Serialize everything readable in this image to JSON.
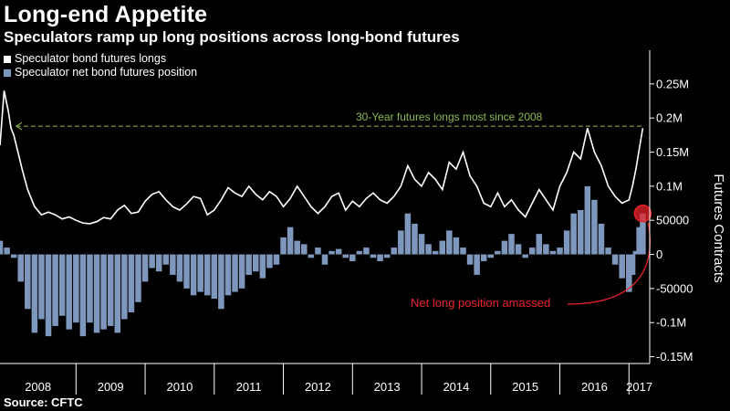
{
  "header": {
    "title": "Long-end Appetite",
    "subtitle": "Speculators ramp up long positions across long-bond futures",
    "source": "Source: CFTC"
  },
  "colors": {
    "longs_line": "#ffffff",
    "net_bars": "#7d97bd",
    "reference_line": "#8fb84b",
    "highlight": "#e8232a"
  },
  "chart_data": {
    "type": "bar",
    "ylabel": "Futures Contracts",
    "ylim": [
      -160000,
      290000
    ],
    "yticks": [
      {
        "value": 250000,
        "label": "0.25M"
      },
      {
        "value": 200000,
        "label": "0.2M"
      },
      {
        "value": 150000,
        "label": "0.15M"
      },
      {
        "value": 100000,
        "label": "0.1M"
      },
      {
        "value": 50000,
        "label": "50000"
      },
      {
        "value": 0,
        "label": "0"
      },
      {
        "value": -50000,
        "label": "-50000"
      },
      {
        "value": -100000,
        "label": "-0.1M"
      },
      {
        "value": -150000,
        "label": "-0.15M"
      }
    ],
    "x_range": [
      2007.9,
      2017.3
    ],
    "years": [
      {
        "label": "2008",
        "start": 2007.9,
        "end": 2009.0
      },
      {
        "label": "2009",
        "start": 2009.0,
        "end": 2010.0
      },
      {
        "label": "2010",
        "start": 2010.0,
        "end": 2011.0
      },
      {
        "label": "2011",
        "start": 2011.0,
        "end": 2012.0
      },
      {
        "label": "2012",
        "start": 2012.0,
        "end": 2013.0
      },
      {
        "label": "2013",
        "start": 2013.0,
        "end": 2014.0
      },
      {
        "label": "2014",
        "start": 2014.0,
        "end": 2015.0
      },
      {
        "label": "2015",
        "start": 2015.0,
        "end": 2016.0
      },
      {
        "label": "2016",
        "start": 2016.0,
        "end": 2017.0
      },
      {
        "label": "2017",
        "start": 2017.0,
        "end": 2017.3
      }
    ],
    "series": [
      {
        "name": "Speculator bond futures longs",
        "kind": "line",
        "points": [
          [
            2007.9,
            160000
          ],
          [
            2007.96,
            240000
          ],
          [
            2008.02,
            210000
          ],
          [
            2008.06,
            185000
          ],
          [
            2008.1,
            175000
          ],
          [
            2008.16,
            150000
          ],
          [
            2008.22,
            125000
          ],
          [
            2008.3,
            95000
          ],
          [
            2008.4,
            70000
          ],
          [
            2008.5,
            58000
          ],
          [
            2008.6,
            62000
          ],
          [
            2008.7,
            58000
          ],
          [
            2008.8,
            52000
          ],
          [
            2008.9,
            55000
          ],
          [
            2009.0,
            50000
          ],
          [
            2009.1,
            46000
          ],
          [
            2009.2,
            45000
          ],
          [
            2009.3,
            48000
          ],
          [
            2009.4,
            54000
          ],
          [
            2009.5,
            52000
          ],
          [
            2009.6,
            65000
          ],
          [
            2009.7,
            72000
          ],
          [
            2009.8,
            60000
          ],
          [
            2009.9,
            62000
          ],
          [
            2010.0,
            78000
          ],
          [
            2010.1,
            88000
          ],
          [
            2010.2,
            92000
          ],
          [
            2010.3,
            80000
          ],
          [
            2010.4,
            70000
          ],
          [
            2010.5,
            65000
          ],
          [
            2010.6,
            74000
          ],
          [
            2010.7,
            85000
          ],
          [
            2010.8,
            82000
          ],
          [
            2010.9,
            58000
          ],
          [
            2011.0,
            65000
          ],
          [
            2011.1,
            80000
          ],
          [
            2011.2,
            98000
          ],
          [
            2011.3,
            90000
          ],
          [
            2011.4,
            85000
          ],
          [
            2011.5,
            100000
          ],
          [
            2011.6,
            88000
          ],
          [
            2011.7,
            80000
          ],
          [
            2011.8,
            92000
          ],
          [
            2011.9,
            85000
          ],
          [
            2012.0,
            70000
          ],
          [
            2012.1,
            82000
          ],
          [
            2012.2,
            100000
          ],
          [
            2012.3,
            85000
          ],
          [
            2012.4,
            70000
          ],
          [
            2012.5,
            60000
          ],
          [
            2012.6,
            70000
          ],
          [
            2012.7,
            85000
          ],
          [
            2012.8,
            90000
          ],
          [
            2012.9,
            65000
          ],
          [
            2013.0,
            78000
          ],
          [
            2013.1,
            70000
          ],
          [
            2013.2,
            82000
          ],
          [
            2013.3,
            90000
          ],
          [
            2013.4,
            80000
          ],
          [
            2013.5,
            75000
          ],
          [
            2013.6,
            85000
          ],
          [
            2013.7,
            100000
          ],
          [
            2013.8,
            130000
          ],
          [
            2013.9,
            110000
          ],
          [
            2014.0,
            100000
          ],
          [
            2014.1,
            120000
          ],
          [
            2014.2,
            110000
          ],
          [
            2014.3,
            95000
          ],
          [
            2014.4,
            135000
          ],
          [
            2014.5,
            125000
          ],
          [
            2014.6,
            150000
          ],
          [
            2014.7,
            115000
          ],
          [
            2014.8,
            100000
          ],
          [
            2014.9,
            75000
          ],
          [
            2015.0,
            70000
          ],
          [
            2015.1,
            90000
          ],
          [
            2015.2,
            70000
          ],
          [
            2015.3,
            80000
          ],
          [
            2015.4,
            65000
          ],
          [
            2015.5,
            55000
          ],
          [
            2015.6,
            75000
          ],
          [
            2015.7,
            95000
          ],
          [
            2015.8,
            80000
          ],
          [
            2015.9,
            65000
          ],
          [
            2016.0,
            100000
          ],
          [
            2016.1,
            120000
          ],
          [
            2016.2,
            150000
          ],
          [
            2016.3,
            140000
          ],
          [
            2016.4,
            185000
          ],
          [
            2016.5,
            150000
          ],
          [
            2016.6,
            130000
          ],
          [
            2016.7,
            100000
          ],
          [
            2016.8,
            85000
          ],
          [
            2016.9,
            75000
          ],
          [
            2017.0,
            80000
          ],
          [
            2017.05,
            100000
          ],
          [
            2017.1,
            125000
          ],
          [
            2017.15,
            155000
          ],
          [
            2017.2,
            185000
          ]
        ]
      },
      {
        "name": "Speculator net bond futures position",
        "kind": "bar",
        "points": [
          [
            2007.9,
            20000
          ],
          [
            2008.0,
            10000
          ],
          [
            2008.1,
            -5000
          ],
          [
            2008.2,
            -40000
          ],
          [
            2008.3,
            -80000
          ],
          [
            2008.4,
            -115000
          ],
          [
            2008.5,
            -95000
          ],
          [
            2008.6,
            -120000
          ],
          [
            2008.7,
            -105000
          ],
          [
            2008.8,
            -90000
          ],
          [
            2008.9,
            -110000
          ],
          [
            2009.0,
            -100000
          ],
          [
            2009.1,
            -120000
          ],
          [
            2009.2,
            -100000
          ],
          [
            2009.3,
            -115000
          ],
          [
            2009.4,
            -110000
          ],
          [
            2009.5,
            -105000
          ],
          [
            2009.6,
            -115000
          ],
          [
            2009.7,
            -95000
          ],
          [
            2009.8,
            -85000
          ],
          [
            2009.9,
            -70000
          ],
          [
            2010.0,
            -40000
          ],
          [
            2010.1,
            -20000
          ],
          [
            2010.2,
            -25000
          ],
          [
            2010.3,
            -15000
          ],
          [
            2010.4,
            -30000
          ],
          [
            2010.5,
            -40000
          ],
          [
            2010.6,
            -50000
          ],
          [
            2010.7,
            -60000
          ],
          [
            2010.8,
            -55000
          ],
          [
            2010.9,
            -60000
          ],
          [
            2011.0,
            -65000
          ],
          [
            2011.1,
            -80000
          ],
          [
            2011.2,
            -60000
          ],
          [
            2011.3,
            -55000
          ],
          [
            2011.4,
            -50000
          ],
          [
            2011.5,
            -30000
          ],
          [
            2011.6,
            -25000
          ],
          [
            2011.7,
            -35000
          ],
          [
            2011.8,
            -20000
          ],
          [
            2011.9,
            -15000
          ],
          [
            2012.0,
            25000
          ],
          [
            2012.1,
            40000
          ],
          [
            2012.2,
            20000
          ],
          [
            2012.3,
            15000
          ],
          [
            2012.4,
            -5000
          ],
          [
            2012.5,
            10000
          ],
          [
            2012.6,
            -15000
          ],
          [
            2012.7,
            5000
          ],
          [
            2012.8,
            8000
          ],
          [
            2012.9,
            -5000
          ],
          [
            2013.0,
            -10000
          ],
          [
            2013.1,
            5000
          ],
          [
            2013.2,
            10000
          ],
          [
            2013.3,
            -5000
          ],
          [
            2013.4,
            -10000
          ],
          [
            2013.5,
            -5000
          ],
          [
            2013.6,
            10000
          ],
          [
            2013.7,
            35000
          ],
          [
            2013.8,
            60000
          ],
          [
            2013.9,
            45000
          ],
          [
            2014.0,
            30000
          ],
          [
            2014.1,
            15000
          ],
          [
            2014.2,
            5000
          ],
          [
            2014.3,
            20000
          ],
          [
            2014.4,
            35000
          ],
          [
            2014.5,
            25000
          ],
          [
            2014.6,
            10000
          ],
          [
            2014.7,
            -15000
          ],
          [
            2014.8,
            -30000
          ],
          [
            2014.9,
            -10000
          ],
          [
            2015.0,
            -5000
          ],
          [
            2015.1,
            5000
          ],
          [
            2015.2,
            20000
          ],
          [
            2015.3,
            30000
          ],
          [
            2015.4,
            15000
          ],
          [
            2015.5,
            -5000
          ],
          [
            2015.6,
            10000
          ],
          [
            2015.7,
            30000
          ],
          [
            2015.8,
            15000
          ],
          [
            2015.9,
            5000
          ],
          [
            2016.0,
            10000
          ],
          [
            2016.1,
            35000
          ],
          [
            2016.2,
            60000
          ],
          [
            2016.3,
            65000
          ],
          [
            2016.4,
            100000
          ],
          [
            2016.5,
            80000
          ],
          [
            2016.6,
            45000
          ],
          [
            2016.7,
            10000
          ],
          [
            2016.8,
            -15000
          ],
          [
            2016.9,
            -35000
          ],
          [
            2017.0,
            -55000
          ],
          [
            2017.05,
            -30000
          ],
          [
            2017.1,
            5000
          ],
          [
            2017.15,
            40000
          ],
          [
            2017.2,
            60000
          ]
        ]
      }
    ],
    "reference_line": {
      "value": 188000,
      "label": "30-Year futures longs most since 2008"
    },
    "annotation": {
      "text": "Net long position amassed",
      "x": 2017.2,
      "y": 60000
    },
    "legend_position": "top-left"
  }
}
